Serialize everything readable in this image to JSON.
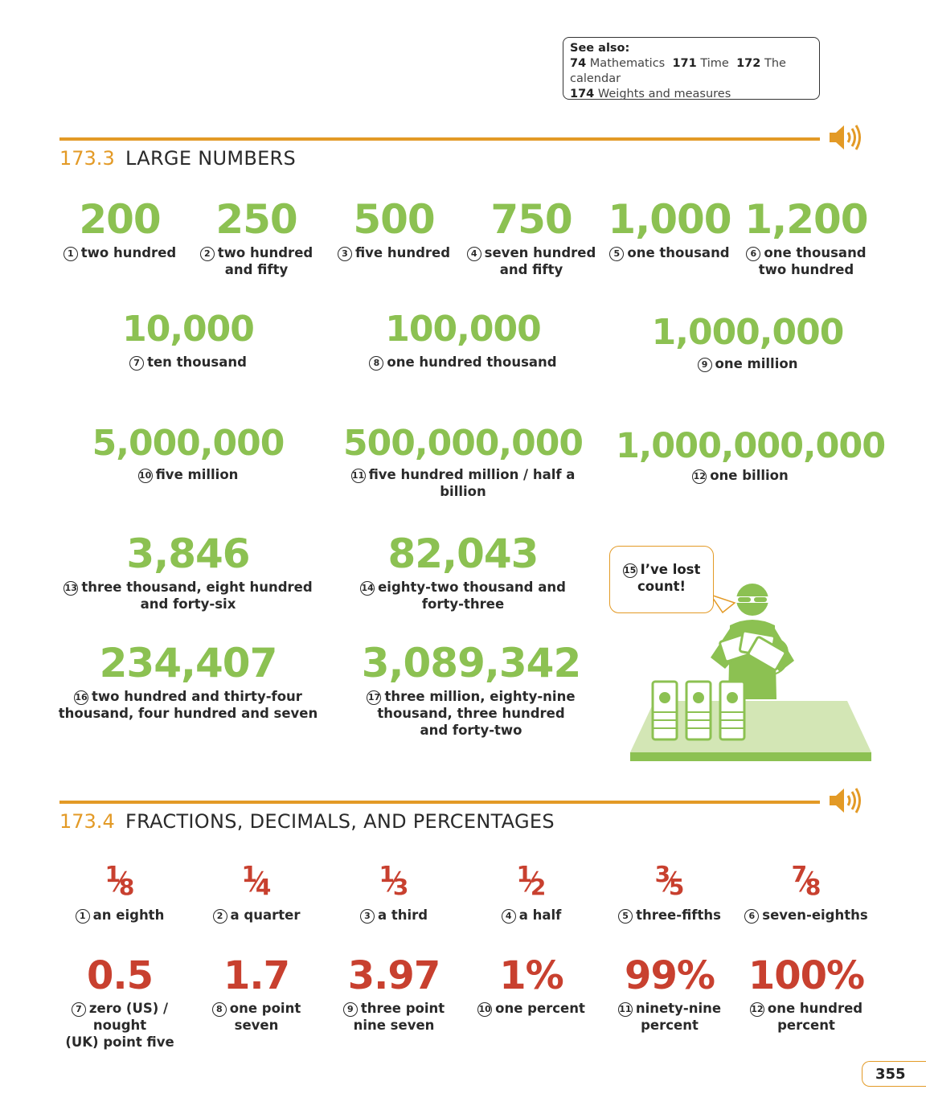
{
  "see_also": {
    "heading": "See also:",
    "line1": [
      {
        "num": "74",
        "text": "Mathematics"
      },
      {
        "num": "171",
        "text": "Time"
      },
      {
        "num": "172",
        "text": "The calendar"
      }
    ],
    "line2": [
      {
        "num": "174",
        "text": "Weights and measures"
      }
    ]
  },
  "section1": {
    "number": "173.3",
    "title": "LARGE NUMBERS",
    "row1": [
      {
        "n": "1",
        "value": "200",
        "label": "two hundred"
      },
      {
        "n": "2",
        "value": "250",
        "label": "two hundred\nand fifty"
      },
      {
        "n": "3",
        "value": "500",
        "label": "five hundred"
      },
      {
        "n": "4",
        "value": "750",
        "label": "seven hundred\nand fifty"
      },
      {
        "n": "5",
        "value": "1,000",
        "label": "one thousand"
      },
      {
        "n": "6",
        "value": "1,200",
        "label": "one thousand\ntwo hundred"
      }
    ],
    "row2": [
      {
        "n": "7",
        "value": "10,000",
        "label": "ten thousand"
      },
      {
        "n": "8",
        "value": "100,000",
        "label": "one hundred thousand"
      },
      {
        "n": "9",
        "value": "1,000,000",
        "label": "one million"
      }
    ],
    "row3": [
      {
        "n": "10",
        "value": "5,000,000",
        "label": "five million"
      },
      {
        "n": "11",
        "value": "500,000,000",
        "label": "five hundred million / half a billion"
      },
      {
        "n": "12",
        "value": "1,000,000,000",
        "label": "one billion"
      }
    ],
    "row4": [
      {
        "n": "13",
        "value": "3,846",
        "label": "three thousand, eight hundred\nand forty-six"
      },
      {
        "n": "14",
        "value": "82,043",
        "label": "eighty-two thousand and\nforty-three"
      }
    ],
    "row5": [
      {
        "n": "16",
        "value": "234,407",
        "label": "two hundred and thirty-four\nthousand, four hundred and seven"
      },
      {
        "n": "17",
        "value": "3,089,342",
        "label": "three million, eighty-nine\nthousand, three hundred\nand forty-two"
      }
    ],
    "bubble": {
      "n": "15",
      "text": "I’ve lost\ncount!"
    }
  },
  "section2": {
    "number": "173.4",
    "title": "FRACTIONS, DECIMALS, AND PERCENTAGES",
    "fractions": [
      {
        "n": "1",
        "num": "1",
        "den": "8",
        "label": "an eighth"
      },
      {
        "n": "2",
        "num": "1",
        "den": "4",
        "label": "a quarter"
      },
      {
        "n": "3",
        "num": "1",
        "den": "3",
        "label": "a third"
      },
      {
        "n": "4",
        "num": "1",
        "den": "2",
        "label": "a half"
      },
      {
        "n": "5",
        "num": "3",
        "den": "5",
        "label": "three-fifths"
      },
      {
        "n": "6",
        "num": "7",
        "den": "8",
        "label": "seven-eighths"
      }
    ],
    "decimals": [
      {
        "n": "7",
        "value": "0.5",
        "label": "zero (US) / nought\n(UK) point five"
      },
      {
        "n": "8",
        "value": "1.7",
        "label": "one point\nseven"
      },
      {
        "n": "9",
        "value": "3.97",
        "label": "three point\nnine seven"
      },
      {
        "n": "10",
        "value": "1%",
        "label": "one percent"
      },
      {
        "n": "11",
        "value": "99%",
        "label": "ninety-nine\npercent"
      },
      {
        "n": "12",
        "value": "100%",
        "label": "one hundred\npercent"
      }
    ]
  },
  "page_number": "355",
  "colors": {
    "accent": "#e39a26",
    "green": "#8cc152",
    "red": "#c8402f"
  }
}
